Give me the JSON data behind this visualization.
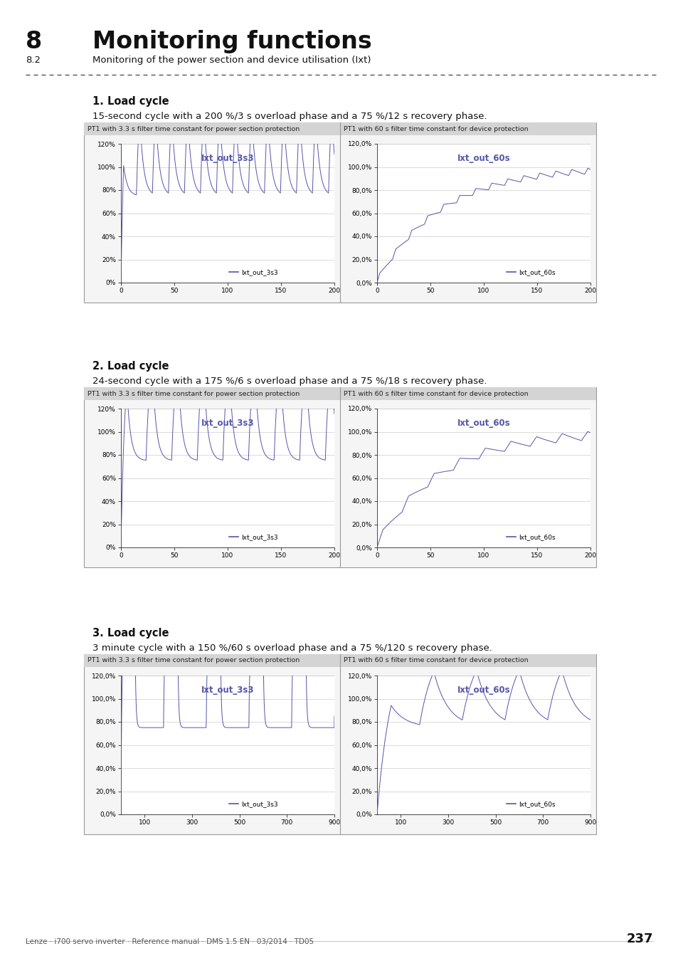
{
  "title_num": "8",
  "title_text": "Monitoring functions",
  "subtitle_num": "8.2",
  "subtitle_text": "Monitoring of the power section and device utilisation (Ixt)",
  "footer_text": "Lenze · i700 servo inverter · Reference manual · DMS 1.5 EN · 03/2014 · TD05",
  "footer_page": "237",
  "sections": [
    {
      "label": "1. Load cycle",
      "description": "15-second cycle with a 200 %/3 s overload phase and a 75 %/12 s recovery phase.",
      "left_title": "PT1 with 3.3 s filter time constant for power section protection",
      "right_title": "PT1 with 60 s filter time constant for device protection",
      "left_chart_title": "Ixt_out_3s3",
      "right_chart_title": "Ixt_out_60s",
      "left_legend": "Ixt_out_3s3",
      "right_legend": "Ixt_out_60s",
      "xmax": 200,
      "left_ytick_labels": [
        "0%",
        "20%",
        "40%",
        "60%",
        "80%",
        "100%",
        "120%"
      ],
      "right_ytick_labels": [
        "0,0%",
        "20,0%",
        "40,0%",
        "60,0%",
        "80,0%",
        "100,0%",
        "120,0%"
      ],
      "xtick_labels": [
        "0",
        "50",
        "100",
        "150",
        "200"
      ],
      "xtick_vals": [
        0,
        50,
        100,
        150,
        200
      ],
      "cycle_period": 15,
      "overload_duration": 3,
      "overload_level": 2.0,
      "recovery_level": 0.75,
      "pt1_tau_fast": 3.3,
      "pt1_tau_slow": 60,
      "sim_duration": 200
    },
    {
      "label": "2. Load cycle",
      "description": "24-second cycle with a 175 %/6 s overload phase and a 75 %/18 s recovery phase.",
      "left_title": "PT1 with 3.3 s filter time constant for power section protection",
      "right_title": "PT1 with 60 s filter time constant for device protection",
      "left_chart_title": "Ixt_out_3s3",
      "right_chart_title": "Ixt_out_60s",
      "left_legend": "Ixt_out_3s3",
      "right_legend": "Ixt_out_60s",
      "xmax": 200,
      "left_ytick_labels": [
        "0%",
        "20%",
        "40%",
        "60%",
        "80%",
        "100%",
        "120%"
      ],
      "right_ytick_labels": [
        "0,0%",
        "20,0%",
        "40,0%",
        "60,0%",
        "80,0%",
        "100,0%",
        "120,0%"
      ],
      "xtick_labels": [
        "0",
        "50",
        "100",
        "150",
        "200"
      ],
      "xtick_vals": [
        0,
        50,
        100,
        150,
        200
      ],
      "cycle_period": 24,
      "overload_duration": 6,
      "overload_level": 1.75,
      "recovery_level": 0.75,
      "pt1_tau_fast": 3.3,
      "pt1_tau_slow": 60,
      "sim_duration": 200
    },
    {
      "label": "3. Load cycle",
      "description": "3 minute cycle with a 150 %/60 s overload phase and a 75 %/120 s recovery phase.",
      "left_title": "PT1 with 3.3 s filter time constant for power section protection",
      "right_title": "PT1 with 60 s filter time constant for device protection",
      "left_chart_title": "Ixt_out_3s3",
      "right_chart_title": "Ixt_out_60s",
      "left_legend": "Ixt_out_3s3",
      "right_legend": "Ixt_out_60s",
      "xmax": 900,
      "left_ytick_labels": [
        "0,0%",
        "20,0%",
        "40,0%",
        "60,0%",
        "80,0%",
        "100,0%",
        "120,0%"
      ],
      "right_ytick_labels": [
        "0,0%",
        "20,0%",
        "40,0%",
        "60,0%",
        "80,0%",
        "100,0%",
        "120,0%"
      ],
      "xtick_labels": [
        "100",
        "300",
        "500",
        "700",
        "900"
      ],
      "xtick_vals": [
        100,
        300,
        500,
        700,
        900
      ],
      "cycle_period": 180,
      "overload_duration": 60,
      "overload_level": 1.5,
      "recovery_level": 0.75,
      "pt1_tau_fast": 3.3,
      "pt1_tau_slow": 60,
      "sim_duration": 900
    }
  ],
  "line_color": "#5555aa",
  "bg_color": "#ffffff",
  "grid_color": "#cccccc",
  "text_color": "#000000",
  "header_gray": "#d4d4d4",
  "box_border": "#999999"
}
